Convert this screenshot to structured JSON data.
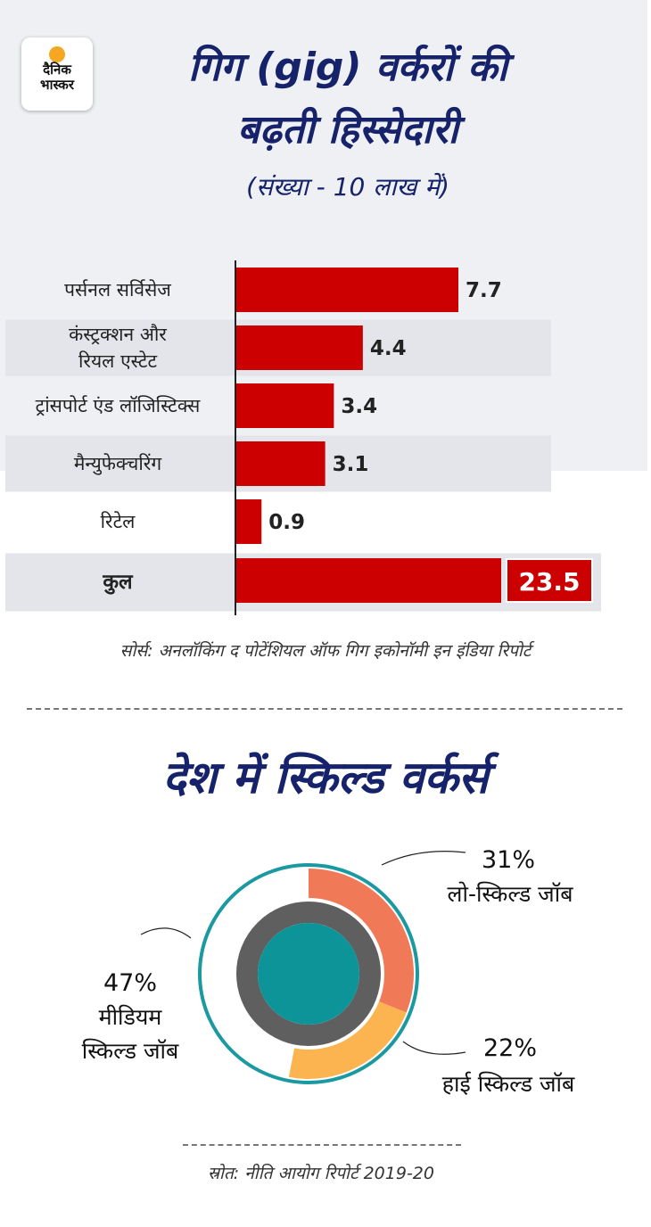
{
  "brand": {
    "logo_line1": "दैनिक",
    "logo_line2": "भास्कर",
    "sun_color": "#f5a623"
  },
  "header": {
    "title_line1": "गिग (gig) वर्करों की",
    "title_line2": "बढ़ती हिस्सेदारी",
    "subtitle": "(संख्या - 10 लाख में)"
  },
  "chart_data": [
    {
      "type": "bar",
      "orientation": "horizontal",
      "title": "गिग (gig) वर्करों की बढ़ती हिस्सेदारी",
      "unit": "(संख्या - 10 लाख में)",
      "categories": [
        [
          "पर्सनल सर्विसेज"
        ],
        [
          "कंस्ट्रक्शन और",
          "रियल एस्टेट"
        ],
        [
          "ट्रांसपोर्ट एंड लॉजिस्टिक्स"
        ],
        [
          "मैन्युफेक्चरिंग"
        ],
        [
          "रिटेल"
        ]
      ],
      "values": [
        7.7,
        4.4,
        3.4,
        3.1,
        0.9
      ],
      "value_labels": [
        "7.7",
        "4.4",
        "3.4",
        "3.1",
        "0.9"
      ],
      "total": {
        "label": "कुल",
        "value": 23.5,
        "value_label": "23.5"
      },
      "bar_color": "#cc0000",
      "xlim": [
        0,
        7.7
      ],
      "grid": false,
      "source": "सोर्स: अनलॉकिंग द पोटेंशियल ऑफ गिग इकोनॉमी इन इंडिया रिपोर्ट"
    },
    {
      "type": "pie",
      "title": "देश में स्किल्ड वर्कर्स",
      "segments": [
        {
          "label": "लो-स्किल्ड जॉब",
          "value": 31,
          "value_label": "31%",
          "color": "#f07a58"
        },
        {
          "label": "हाई स्किल्ड जॉब",
          "value": 22,
          "value_label": "22%",
          "color": "#fbb450"
        },
        {
          "label_lines": [
            "मीडियम",
            "स्किल्ड जॉब"
          ],
          "value": 47,
          "value_label": "47%",
          "color": "#ffffff"
        }
      ],
      "ring_color": "#1a9aa0",
      "center_color": "#0c9498",
      "source": "स्रोत: नीति आयोग रिपोर्ट 2019-20"
    }
  ]
}
